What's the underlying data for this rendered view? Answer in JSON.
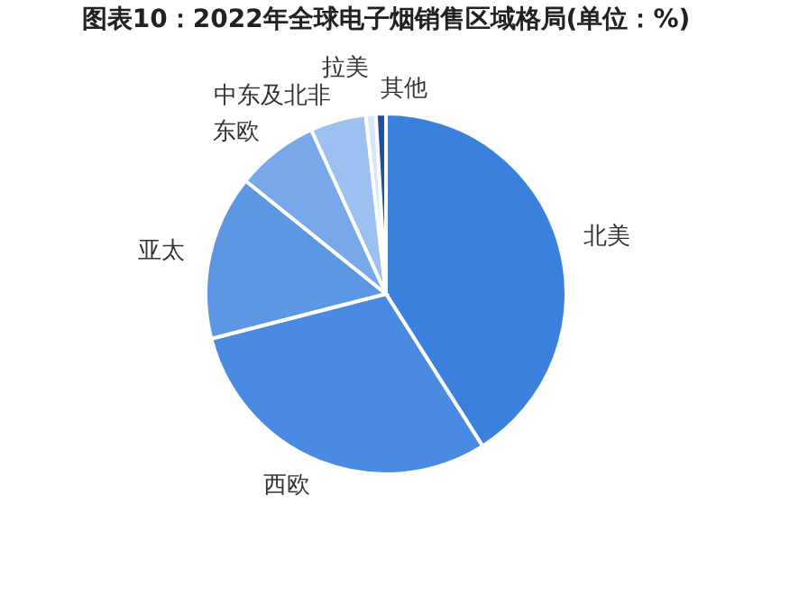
{
  "chart_data": {
    "type": "pie",
    "title": "图表10：2022年全球电子烟销售区域格局(单位：%)",
    "categories": [
      "北美",
      "西欧",
      "亚太",
      "东欧",
      "中东及北非",
      "拉美",
      "其他"
    ],
    "values": [
      41,
      30,
      14.8,
      7.4,
      5,
      0.9,
      0.9
    ],
    "colors": [
      "#3b80dd",
      "#4a8ae0",
      "#5d97e4",
      "#78a8e9",
      "#9cc0f0",
      "#d6e5f8",
      "#1f4f9a"
    ],
    "legend": false
  }
}
